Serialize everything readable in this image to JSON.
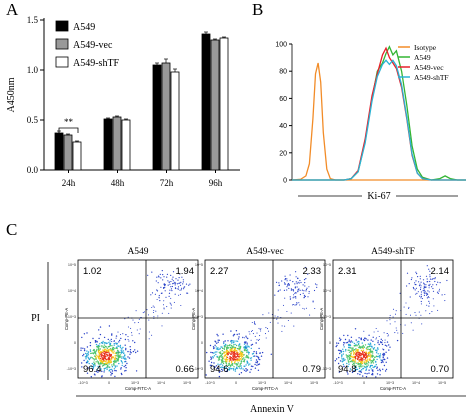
{
  "panel_labels": {
    "a": "A",
    "b": "B",
    "c": "C"
  },
  "chart_data": [
    {
      "type": "bar",
      "panel": "A",
      "ylabel": "A450nm",
      "categories": [
        "24h",
        "48h",
        "72h",
        "96h"
      ],
      "ylim": [
        0,
        1.5
      ],
      "yticks": [
        "0.0",
        "0.5",
        "1.0",
        "1.5"
      ],
      "legend_position": "top-left",
      "series": [
        {
          "name": "A549",
          "color": "#000000",
          "values": [
            0.37,
            0.51,
            1.05,
            1.36
          ],
          "errors": [
            0.02,
            0.01,
            0.02,
            0.02
          ]
        },
        {
          "name": "A549-vec",
          "color": "#999999",
          "values": [
            0.35,
            0.53,
            1.07,
            1.3
          ],
          "errors": [
            0.01,
            0.01,
            0.04,
            0.01
          ]
        },
        {
          "name": "A549-shTF",
          "color": "#ffffff",
          "values": [
            0.28,
            0.5,
            0.98,
            1.32
          ],
          "errors": [
            0.01,
            0.01,
            0.03,
            0.01
          ]
        }
      ],
      "annotation": "**"
    },
    {
      "type": "line",
      "panel": "B",
      "xlabel": "Ki-67",
      "ylim": [
        0,
        100
      ],
      "yticks": [
        "0",
        "20",
        "40",
        "60",
        "80",
        "100"
      ],
      "legend_position": "top-right",
      "series": [
        {
          "name": "Isotype",
          "color": "#f28c28",
          "points": [
            [
              0,
              0
            ],
            [
              5,
              0.5
            ],
            [
              8,
              3
            ],
            [
              10,
              12
            ],
            [
              12,
              45
            ],
            [
              13.5,
              78
            ],
            [
              15,
              86
            ],
            [
              16.5,
              72
            ],
            [
              18,
              35
            ],
            [
              20,
              8
            ],
            [
              22,
              1
            ],
            [
              25,
              0
            ],
            [
              100,
              0
            ]
          ]
        },
        {
          "name": "A549",
          "color": "#33b533",
          "points": [
            [
              0,
              0
            ],
            [
              30,
              0
            ],
            [
              34,
              1
            ],
            [
              38,
              6
            ],
            [
              42,
              28
            ],
            [
              46,
              60
            ],
            [
              49,
              80
            ],
            [
              52,
              86
            ],
            [
              54,
              93
            ],
            [
              56,
              98
            ],
            [
              58,
              92
            ],
            [
              60,
              95
            ],
            [
              63,
              80
            ],
            [
              66,
              55
            ],
            [
              69,
              25
            ],
            [
              72,
              8
            ],
            [
              75,
              2
            ],
            [
              80,
              0
            ],
            [
              85,
              1
            ],
            [
              88,
              3
            ],
            [
              91,
              1
            ],
            [
              95,
              0
            ],
            [
              100,
              0
            ]
          ]
        },
        {
          "name": "A549-vec",
          "color": "#e8202a",
          "points": [
            [
              0,
              0
            ],
            [
              30,
              0
            ],
            [
              34,
              1
            ],
            [
              38,
              7
            ],
            [
              42,
              30
            ],
            [
              46,
              62
            ],
            [
              49,
              78
            ],
            [
              52,
              92
            ],
            [
              54,
              97
            ],
            [
              56,
              90
            ],
            [
              58,
              86
            ],
            [
              60,
              82
            ],
            [
              63,
              68
            ],
            [
              66,
              45
            ],
            [
              69,
              18
            ],
            [
              72,
              5
            ],
            [
              75,
              1
            ],
            [
              80,
              0
            ],
            [
              100,
              0
            ]
          ]
        },
        {
          "name": "A549-shTF",
          "color": "#2ab3d4",
          "points": [
            [
              0,
              0
            ],
            [
              30,
              0
            ],
            [
              34,
              1
            ],
            [
              38,
              6
            ],
            [
              42,
              27
            ],
            [
              46,
              58
            ],
            [
              49,
              76
            ],
            [
              52,
              85
            ],
            [
              54,
              88
            ],
            [
              56,
              85
            ],
            [
              58,
              88
            ],
            [
              60,
              84
            ],
            [
              63,
              70
            ],
            [
              66,
              46
            ],
            [
              69,
              19
            ],
            [
              72,
              5
            ],
            [
              75,
              1
            ],
            [
              80,
              0
            ],
            [
              100,
              0
            ]
          ]
        }
      ]
    },
    {
      "type": "scatter",
      "panel": "C",
      "xlabel": "Annexin V",
      "ylabel": "PI",
      "subplots": [
        {
          "title": "A549",
          "quadrants": {
            "upper_left": "1.02",
            "upper_right": "1.94",
            "lower_left": "96.4",
            "lower_right": "0.66"
          }
        },
        {
          "title": "A549-vec",
          "quadrants": {
            "upper_left": "2.27",
            "upper_right": "2.33",
            "lower_left": "94.6",
            "lower_right": "0.79"
          }
        },
        {
          "title": "A549-shTF",
          "quadrants": {
            "upper_left": "2.31",
            "upper_right": "2.14",
            "lower_left": "94.8",
            "lower_right": "0.70"
          }
        }
      ],
      "axis_titles": {
        "x": "Comp-FITC-A",
        "y": "Comp-PE-A"
      }
    }
  ]
}
